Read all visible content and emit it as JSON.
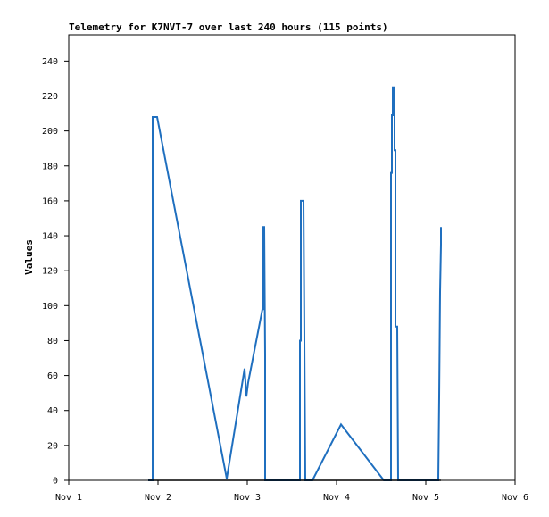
{
  "chart_data": {
    "type": "line",
    "title": "Telemetry for K7NVT-7 over last 240 hours (115 points)",
    "xlabel": "",
    "ylabel": "Values",
    "ylim": [
      0,
      255
    ],
    "yticks": [
      0,
      20,
      40,
      60,
      80,
      100,
      120,
      140,
      160,
      180,
      200,
      220,
      240
    ],
    "xlim": [
      0,
      5
    ],
    "xticks": [
      {
        "value": 0,
        "label": "Nov 1"
      },
      {
        "value": 1,
        "label": "Nov 2"
      },
      {
        "value": 2,
        "label": "Nov 3"
      },
      {
        "value": 3,
        "label": "Nov 4"
      },
      {
        "value": 4,
        "label": "Nov 5"
      },
      {
        "value": 5,
        "label": "Nov 6"
      }
    ],
    "grid": false,
    "colors": {
      "series_1": "#1f6fbf",
      "series_2": "#000000"
    },
    "series": [
      {
        "color": "#1f6fbf",
        "x": [
          0.89,
          0.94,
          0.94,
          0.99,
          1.77,
          1.97,
          1.99,
          2.01,
          2.17,
          2.18,
          2.18,
          2.19,
          2.2,
          2.2,
          2.59,
          2.59,
          2.6,
          2.6,
          2.62,
          2.63,
          2.64,
          2.64,
          2.65,
          2.65,
          2.73,
          3.05,
          3.53,
          3.61,
          3.61,
          3.62,
          3.62,
          3.63,
          3.63,
          3.64,
          3.64,
          3.65,
          3.65,
          3.66,
          3.66,
          3.68,
          3.69,
          4.14,
          4.15,
          4.15,
          4.16,
          4.16,
          4.17,
          4.17
        ],
        "values": [
          0,
          0,
          208,
          208,
          1,
          64,
          48,
          56,
          98,
          98,
          145,
          145,
          72,
          0,
          0,
          80,
          80,
          160,
          160,
          160,
          80,
          80,
          0,
          0,
          0,
          32,
          0,
          0,
          176,
          176,
          209,
          209,
          225,
          225,
          213,
          213,
          189,
          189,
          88,
          88,
          0,
          0,
          48,
          48,
          108,
          108,
          135,
          145
        ]
      },
      {
        "color": "#000000",
        "x": [
          0.89,
          4.17
        ],
        "values": [
          0,
          0
        ]
      }
    ]
  }
}
